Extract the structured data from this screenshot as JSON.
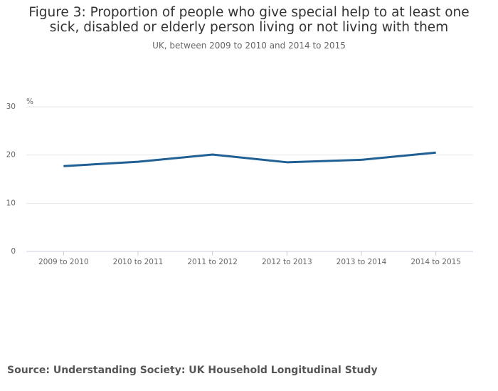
{
  "chart_data": {
    "type": "line",
    "title": "Figure 3: Proportion of people who give special help to at least one sick, disabled or elderly person living or not living with them",
    "subtitle": "UK, between 2009 to 2010 and 2014 to 2015",
    "y_label": "%",
    "categories": [
      "2009 to 2010",
      "2010 to 2011",
      "2011 to 2012",
      "2012 to 2013",
      "2013 to 2014",
      "2014 to 2015"
    ],
    "values": [
      17.7,
      18.6,
      20.1,
      18.5,
      19.0,
      20.5
    ],
    "color": "#206095",
    "ylim": [
      0,
      30
    ],
    "yticks": [
      0,
      10,
      20,
      30
    ],
    "grid": true,
    "source": "Source: Understanding Society: UK Household Longitudinal Study"
  }
}
